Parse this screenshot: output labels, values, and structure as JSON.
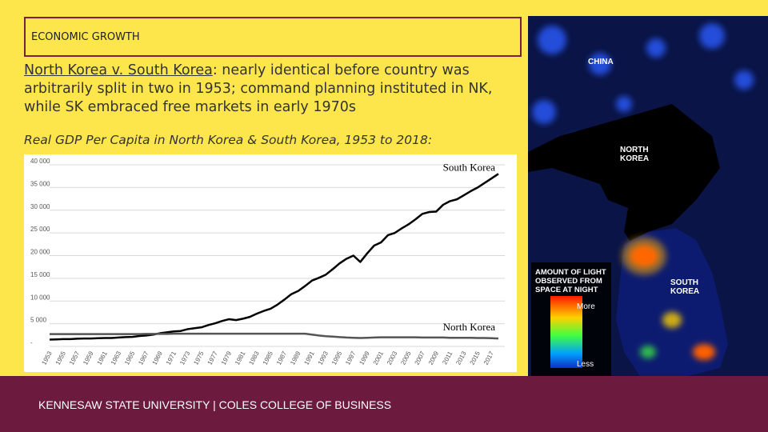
{
  "header": {
    "title": "ECONOMIC GROWTH"
  },
  "body": {
    "link": "North Korea v. South Korea",
    "text": ": nearly identical before country was arbitrarily split in two in 1953; command planning instituted in NK, while SK embraced free markets in early 1970s"
  },
  "chart_data": {
    "type": "line",
    "title": "Real GDP Per Capita in North Korea & South Korea, 1953 to 2018:",
    "x": [
      1953,
      1954,
      1955,
      1956,
      1957,
      1958,
      1959,
      1960,
      1961,
      1962,
      1963,
      1964,
      1965,
      1966,
      1967,
      1968,
      1969,
      1970,
      1971,
      1972,
      1973,
      1974,
      1975,
      1976,
      1977,
      1978,
      1979,
      1980,
      1981,
      1982,
      1983,
      1984,
      1985,
      1986,
      1987,
      1988,
      1989,
      1990,
      1991,
      1992,
      1993,
      1994,
      1995,
      1996,
      1997,
      1998,
      1999,
      2000,
      2001,
      2002,
      2003,
      2004,
      2005,
      2006,
      2007,
      2008,
      2009,
      2010,
      2011,
      2012,
      2013,
      2014,
      2015,
      2016,
      2017,
      2018
    ],
    "series": [
      {
        "name": "South Korea",
        "color": "#000000",
        "values": [
          1500,
          1550,
          1600,
          1600,
          1700,
          1750,
          1750,
          1800,
          1850,
          1850,
          1950,
          2050,
          2100,
          2300,
          2400,
          2600,
          2900,
          3100,
          3300,
          3400,
          3800,
          4000,
          4200,
          4700,
          5100,
          5600,
          6000,
          5800,
          6100,
          6500,
          7200,
          7800,
          8300,
          9200,
          10300,
          11500,
          12200,
          13300,
          14500,
          15100,
          15800,
          17000,
          18300,
          19300,
          20000,
          18600,
          20500,
          22200,
          22900,
          24500,
          25000,
          26000,
          26900,
          28000,
          29200,
          29600,
          29700,
          31200,
          32000,
          32400,
          33300,
          34200,
          35000,
          36000,
          37000,
          38000
        ]
      },
      {
        "name": "North Korea",
        "color": "#555555",
        "values": [
          2700,
          2700,
          2700,
          2700,
          2700,
          2700,
          2700,
          2700,
          2700,
          2700,
          2700,
          2700,
          2700,
          2700,
          2750,
          2750,
          2750,
          2750,
          2800,
          2800,
          2800,
          2800,
          2800,
          2800,
          2800,
          2800,
          2800,
          2800,
          2800,
          2800,
          2800,
          2800,
          2800,
          2800,
          2800,
          2800,
          2800,
          2800,
          2600,
          2400,
          2250,
          2150,
          2050,
          1950,
          1900,
          1850,
          1900,
          1950,
          2000,
          2000,
          2000,
          2000,
          2000,
          2000,
          1950,
          1950,
          1950,
          1950,
          1900,
          1900,
          1900,
          1900,
          1850,
          1850,
          1800,
          1750
        ]
      }
    ],
    "xlim": [
      1953,
      2018
    ],
    "xticks": [
      1953,
      1955,
      1957,
      1959,
      1961,
      1963,
      1965,
      1967,
      1969,
      1971,
      1973,
      1975,
      1977,
      1979,
      1981,
      1983,
      1985,
      1987,
      1989,
      1991,
      1993,
      1995,
      1997,
      1999,
      2001,
      2003,
      2005,
      2007,
      2009,
      2011,
      2013,
      2015,
      2017
    ],
    "ylim": [
      0,
      40000
    ],
    "yticks": [
      {
        "value": 0,
        "label": "-"
      },
      {
        "value": 5000,
        "label": "5 000"
      },
      {
        "value": 10000,
        "label": "10 000"
      },
      {
        "value": 15000,
        "label": "15 000"
      },
      {
        "value": 20000,
        "label": "20 000"
      },
      {
        "value": 25000,
        "label": "25 000"
      },
      {
        "value": 30000,
        "label": "30 000"
      },
      {
        "value": 35000,
        "label": "35 000"
      },
      {
        "value": 40000,
        "label": "40 000"
      }
    ],
    "grid": true
  },
  "image": {
    "labels": {
      "china": "CHINA",
      "north_korea": "NORTH KOREA",
      "south_korea": "SOUTH KOREA"
    },
    "legend": {
      "title": "AMOUNT OF LIGHT OBSERVED FROM SPACE AT NIGHT",
      "more": "More",
      "less": "Less"
    }
  },
  "footer": {
    "text": "KENNESAW STATE UNIVERSITY | COLES COLLEGE OF BUSINESS"
  }
}
